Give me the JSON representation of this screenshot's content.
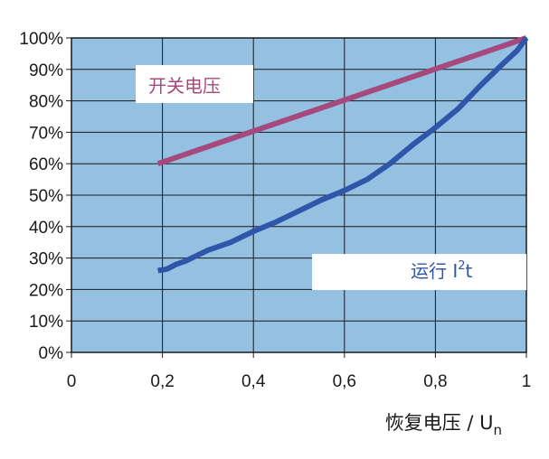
{
  "chart_data": {
    "type": "line",
    "xlabel": {
      "text": "恢复电压 / U",
      "sub": "n"
    },
    "ylabel": "",
    "xlim": [
      0,
      1
    ],
    "ylim": [
      0,
      100
    ],
    "x_tick_labels": [
      "0",
      "0,2",
      "0,4",
      "0,6",
      "0,8",
      "1"
    ],
    "y_tick_labels": [
      "0%",
      "10%",
      "20%",
      "30%",
      "40%",
      "50%",
      "60%",
      "70%",
      "80%",
      "90%",
      "100%"
    ],
    "grid": true,
    "plot_background": "#94c0e2",
    "series": [
      {
        "name": "开关电压",
        "color": "#a64a7e",
        "x": [
          0.19,
          1.0
        ],
        "y": [
          60,
          100
        ]
      },
      {
        "name": "运行 I²t",
        "name_parts": {
          "main": "运行 I",
          "sup": "2",
          "tail": "t"
        },
        "color": "#2f56a8",
        "x": [
          0.19,
          0.21,
          0.23,
          0.25,
          0.3,
          0.35,
          0.4,
          0.45,
          0.5,
          0.55,
          0.6,
          0.65,
          0.7,
          0.75,
          0.8,
          0.85,
          0.9,
          0.95,
          0.98,
          1.0
        ],
        "y": [
          26,
          26.5,
          28,
          29,
          32.5,
          35,
          38.5,
          41.5,
          45,
          48.5,
          51.5,
          55,
          60,
          66,
          71.5,
          77.5,
          85,
          92,
          96,
          100
        ]
      }
    ]
  }
}
